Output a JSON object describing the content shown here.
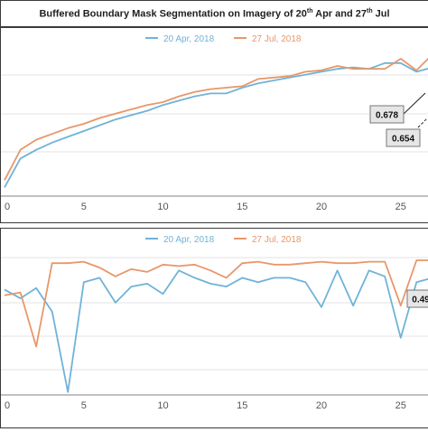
{
  "title": {
    "prefix": "Buffered Boundary Mask Segmentation on Imagery of 20",
    "sup1": "th",
    "middle": " Apr and 27",
    "sup2": "th",
    "suffix": " Jul"
  },
  "colors": {
    "apr": "#6fb3d8",
    "jul": "#e8976a",
    "grid": "#e3e3e3",
    "axis": "#808080"
  },
  "chart_data": [
    {
      "type": "line",
      "xlim": [
        0,
        27
      ],
      "ylim": [
        0,
        100
      ],
      "x_tick_labels": [
        "0",
        "5",
        "10",
        "15",
        "20",
        "25"
      ],
      "grid": true,
      "legend_position": "top-right",
      "series": [
        {
          "name": "20 Apr, 2018",
          "x": [
            0,
            1,
            2,
            3,
            4,
            5,
            6,
            7,
            8,
            9,
            10,
            11,
            12,
            13,
            14,
            15,
            16,
            17,
            18,
            19,
            20,
            21,
            22,
            23,
            24,
            25,
            26,
            27
          ],
          "values": [
            6,
            26,
            32,
            37,
            41,
            45,
            49,
            53,
            56,
            59,
            63,
            66,
            69,
            71,
            71,
            75,
            78,
            80,
            82,
            84,
            86,
            88,
            89,
            88,
            92,
            92,
            86,
            89
          ]
        },
        {
          "name": "27 Jul, 2018",
          "x": [
            0,
            1,
            2,
            3,
            4,
            5,
            6,
            7,
            8,
            9,
            10,
            11,
            12,
            13,
            14,
            15,
            16,
            17,
            18,
            19,
            20,
            21,
            22,
            23,
            24,
            25,
            26,
            27
          ],
          "values": [
            11,
            32,
            39,
            43,
            47,
            50,
            54,
            57,
            60,
            63,
            65,
            69,
            72,
            74,
            75,
            76,
            81,
            82,
            83,
            86,
            87,
            90,
            88,
            88,
            88,
            95,
            87,
            98
          ]
        }
      ],
      "annotations": [
        "0.678",
        "0.654"
      ]
    },
    {
      "type": "line",
      "xlim": [
        0,
        27
      ],
      "ylim": [
        0,
        100
      ],
      "x_tick_labels": [
        "0",
        "5",
        "10",
        "15",
        "20",
        "25"
      ],
      "grid": true,
      "legend_position": "top-right",
      "series": [
        {
          "name": "20 Apr, 2018",
          "x": [
            0,
            1,
            2,
            3,
            4,
            5,
            6,
            7,
            8,
            9,
            10,
            11,
            12,
            13,
            14,
            15,
            16,
            17,
            18,
            19,
            20,
            21,
            22,
            23,
            24,
            25,
            26,
            27
          ],
          "values": [
            72,
            66,
            73,
            57,
            2,
            77,
            80,
            63,
            74,
            76,
            69,
            85,
            80,
            76,
            74,
            80,
            77,
            80,
            80,
            77,
            60,
            85,
            61,
            85,
            81,
            39,
            77,
            80
          ]
        },
        {
          "name": "27 Jul, 2018",
          "x": [
            0,
            1,
            2,
            3,
            4,
            5,
            6,
            7,
            8,
            9,
            10,
            11,
            12,
            13,
            14,
            15,
            16,
            17,
            18,
            19,
            20,
            21,
            22,
            23,
            24,
            25,
            26,
            27
          ],
          "values": [
            68,
            70,
            33,
            90,
            90,
            91,
            87,
            81,
            86,
            84,
            89,
            88,
            89,
            85,
            80,
            90,
            91,
            89,
            89,
            90,
            91,
            90,
            90,
            91,
            91,
            61,
            92,
            92
          ]
        }
      ],
      "annotations": [
        "0.49"
      ]
    }
  ]
}
